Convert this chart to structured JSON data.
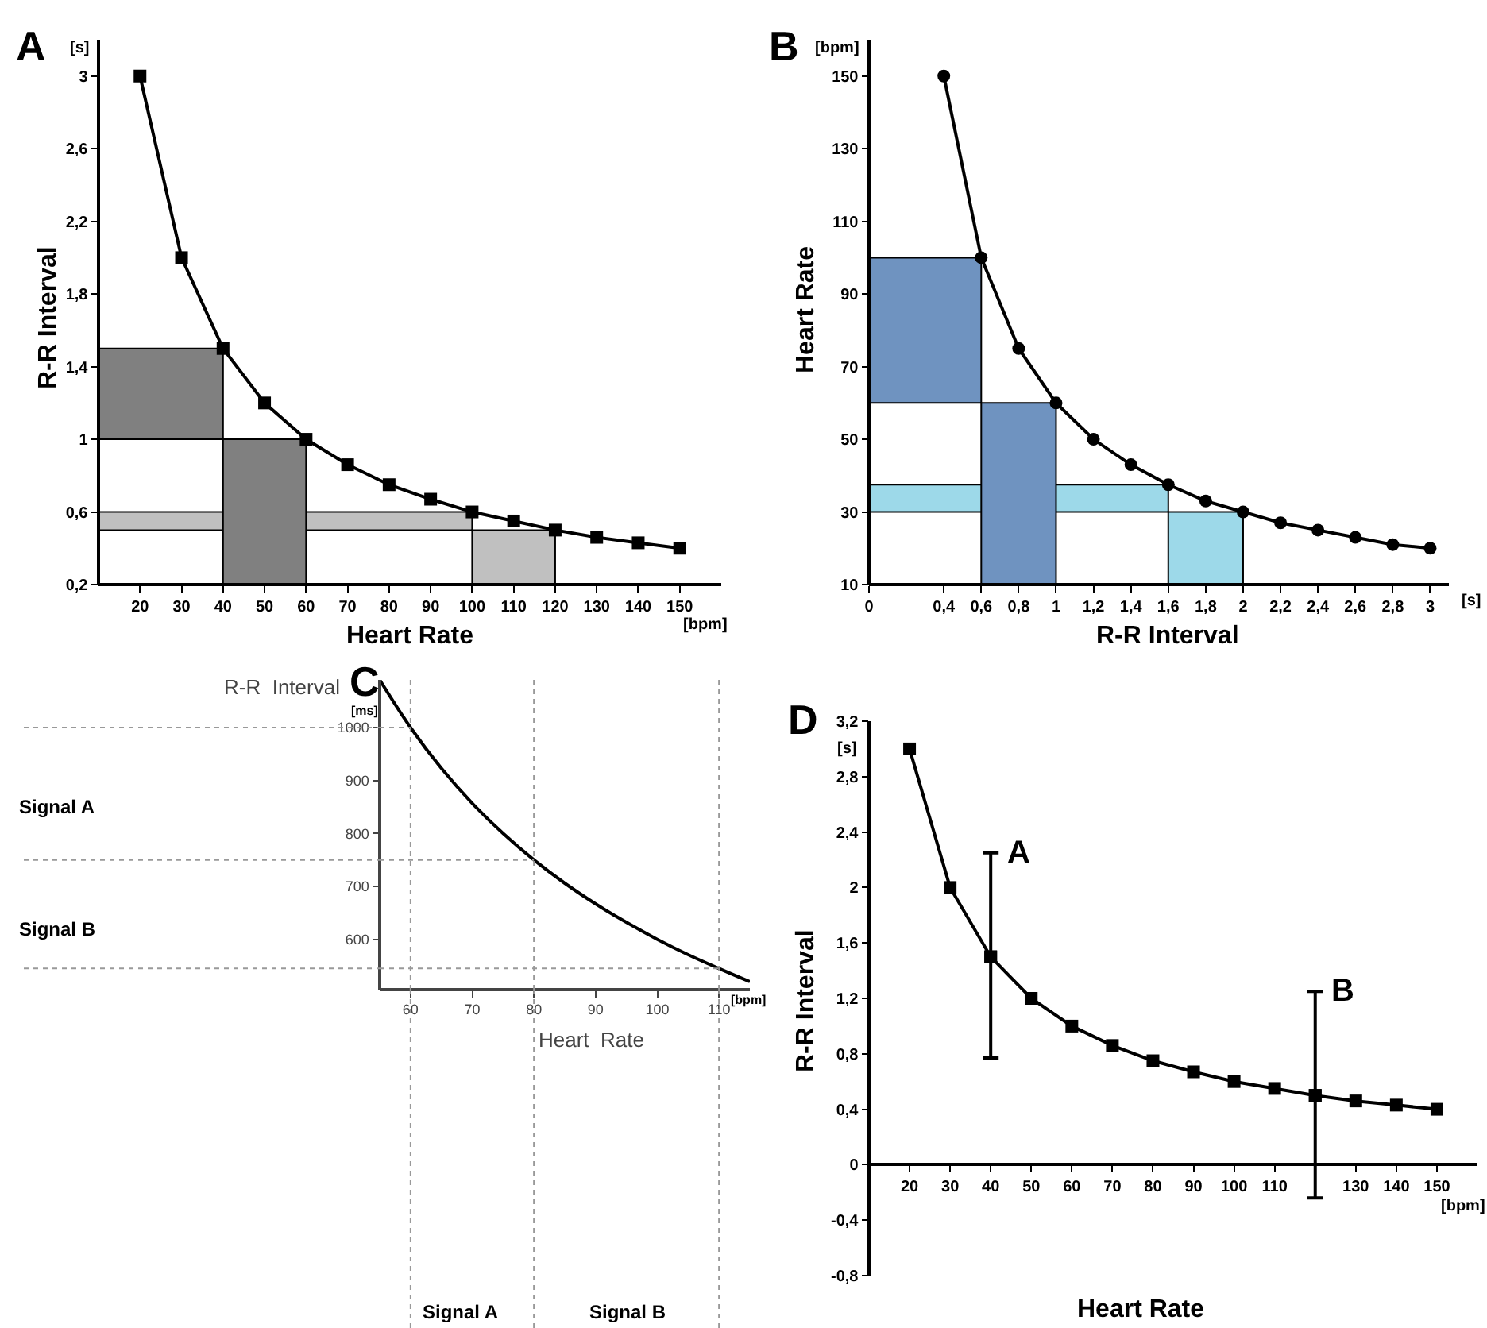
{
  "chart_data": [
    {
      "type": "line",
      "title": "A",
      "xlabel": "Heart Rate",
      "ylabel": "R-R Interval",
      "annotations": [
        "[s]",
        "[bpm]"
      ],
      "x": [
        20,
        30,
        40,
        50,
        60,
        70,
        80,
        90,
        100,
        110,
        120,
        130,
        140,
        150
      ],
      "series": [
        {
          "color": "#000000",
          "values": [
            3,
            2,
            1.5,
            1.2,
            1,
            0.86,
            0.75,
            0.67,
            0.6,
            0.55,
            0.5,
            0.46,
            0.43,
            0.4
          ]
        }
      ],
      "xlim": [
        10,
        160
      ],
      "ylim": [
        0.2,
        3.2
      ],
      "xticks": [
        20,
        30,
        40,
        50,
        60,
        70,
        80,
        90,
        100,
        110,
        120,
        130,
        140,
        150
      ],
      "yticks": [
        {
          "value": 0.2,
          "label": "0,2"
        },
        {
          "value": 0.6,
          "label": "0,6"
        },
        1,
        {
          "value": 1.4,
          "label": "1,4"
        },
        {
          "value": 1.8,
          "label": "1,8"
        },
        {
          "value": 2.2,
          "label": "2,2"
        },
        {
          "value": 2.6,
          "label": "2,6"
        },
        3
      ],
      "marker": "square",
      "bands": [
        {
          "axis": "y",
          "from": 0.5,
          "to": 0.6,
          "color": "#c0c0c0"
        },
        {
          "axis": "x",
          "from": 100,
          "to": 120,
          "color": "#c0c0c0"
        },
        {
          "axis": "y",
          "from": 1,
          "to": 1.5,
          "color": "#808080"
        },
        {
          "axis": "x",
          "from": 40,
          "to": 60,
          "color": "#808080"
        }
      ]
    },
    {
      "type": "line",
      "title": "B",
      "xlabel": "R-R Interval",
      "ylabel": "Heart Rate",
      "annotations": [
        "[bpm]",
        "[s]"
      ],
      "x": [
        0.4,
        0.6,
        0.8,
        1,
        1.2,
        1.4,
        1.6,
        1.8,
        2,
        2.2,
        2.4,
        2.6,
        2.8,
        3
      ],
      "series": [
        {
          "color": "#000000",
          "values": [
            150,
            100,
            75,
            60,
            50,
            43,
            37.5,
            33,
            30,
            27,
            25,
            23,
            21,
            20
          ]
        }
      ],
      "xlim": [
        0,
        3.1
      ],
      "ylim": [
        10,
        160
      ],
      "xticks": [
        0,
        {
          "value": 0.4,
          "label": "0,4"
        },
        {
          "value": 0.6,
          "label": "0,6"
        },
        {
          "value": 0.8,
          "label": "0,8"
        },
        1,
        {
          "value": 1.2,
          "label": "1,2"
        },
        {
          "value": 1.4,
          "label": "1,4"
        },
        {
          "value": 1.6,
          "label": "1,6"
        },
        {
          "value": 1.8,
          "label": "1,8"
        },
        2,
        {
          "value": 2.2,
          "label": "2,2"
        },
        {
          "value": 2.4,
          "label": "2,4"
        },
        {
          "value": 2.6,
          "label": "2,6"
        },
        {
          "value": 2.8,
          "label": "2,8"
        },
        3
      ],
      "yticks": [
        10,
        30,
        50,
        70,
        90,
        110,
        130,
        150
      ],
      "marker": "circle",
      "bands": [
        {
          "axis": "y",
          "from": 60,
          "to": 100,
          "color": "#6f93c0"
        },
        {
          "axis": "y",
          "from": 30,
          "to": 37.5,
          "color": "#9dd9e9"
        },
        {
          "axis": "x",
          "from": 1.6,
          "to": 2,
          "color": "#9dd9e9"
        },
        {
          "axis": "x",
          "from": 0.6,
          "to": 1,
          "color": "#6f93c0"
        }
      ]
    },
    {
      "type": "line",
      "title": "C",
      "xlabel": "Heart  Rate",
      "ylabel": "R-R  Interval",
      "annotations": [
        "[ms]",
        "[bpm]",
        "Signal A",
        "Signal B",
        "Signal A",
        "Signal B"
      ],
      "x": [
        55,
        60,
        65,
        70,
        75,
        80,
        85,
        90,
        95,
        100,
        105,
        110,
        115
      ],
      "series": [
        {
          "color": "#000000",
          "values": [
            1090,
            1000,
            923,
            857,
            800,
            750,
            706,
            667,
            632,
            600,
            571,
            545,
            520
          ]
        }
      ],
      "xlim": [
        55,
        115
      ],
      "ylim": [
        505,
        1090
      ],
      "xticks": [
        60,
        70,
        80,
        90,
        100,
        110
      ],
      "yticks": [
        600,
        700,
        800,
        900,
        1000
      ],
      "marker": "none",
      "ref_lines": [
        {
          "axis": "x",
          "value": 60,
          "color": "#999999",
          "line_style": "dotted"
        },
        {
          "axis": "x",
          "value": 80,
          "color": "#999999",
          "line_style": "dotted"
        },
        {
          "axis": "x",
          "value": 110,
          "color": "#999999",
          "line_style": "dotted"
        },
        {
          "axis": "y",
          "value": 1000,
          "color": "#999999",
          "line_style": "dotted"
        },
        {
          "axis": "y",
          "value": 750,
          "color": "#999999",
          "line_style": "dotted"
        },
        {
          "axis": "y",
          "value": 545,
          "color": "#999999",
          "line_style": "dotted"
        }
      ]
    },
    {
      "type": "line",
      "title": "D",
      "xlabel": "Heart Rate",
      "ylabel": "R-R Interval",
      "annotations": [
        "[s]",
        "[bpm]",
        {
          "text": "A",
          "x": 40,
          "y": 2.25
        },
        {
          "text": "B",
          "x": 120,
          "y": 1.25
        }
      ],
      "x": [
        20,
        30,
        40,
        50,
        60,
        70,
        80,
        90,
        100,
        110,
        120,
        130,
        140,
        150
      ],
      "series": [
        {
          "color": "#000000",
          "values": [
            3,
            2,
            1.5,
            1.2,
            1,
            0.86,
            0.75,
            0.67,
            0.6,
            0.55,
            0.5,
            0.46,
            0.43,
            0.4
          ],
          "errors": [
            null,
            null,
            [
              0.77,
              2.25
            ],
            null,
            null,
            null,
            null,
            null,
            null,
            null,
            [
              -0.24,
              1.25
            ],
            null,
            null,
            null
          ]
        }
      ],
      "xlim": [
        10,
        160
      ],
      "ylim": [
        -0.8,
        3.2
      ],
      "xticks": [
        20,
        30,
        40,
        50,
        60,
        70,
        80,
        90,
        100,
        110,
        130,
        140,
        150
      ],
      "yticks": [
        {
          "value": -0.8,
          "label": "-0,8"
        },
        {
          "value": -0.4,
          "label": "-0,4"
        },
        0,
        {
          "value": 0.4,
          "label": "0,4"
        },
        {
          "value": 0.8,
          "label": "0,8"
        },
        {
          "value": 1.2,
          "label": "1,2"
        },
        {
          "value": 1.6,
          "label": "1,6"
        },
        2,
        {
          "value": 2.4,
          "label": "2,4"
        },
        {
          "value": 2.8,
          "label": "2,8"
        },
        {
          "value": 3.2,
          "label": "3,2"
        }
      ],
      "marker": "square"
    }
  ]
}
